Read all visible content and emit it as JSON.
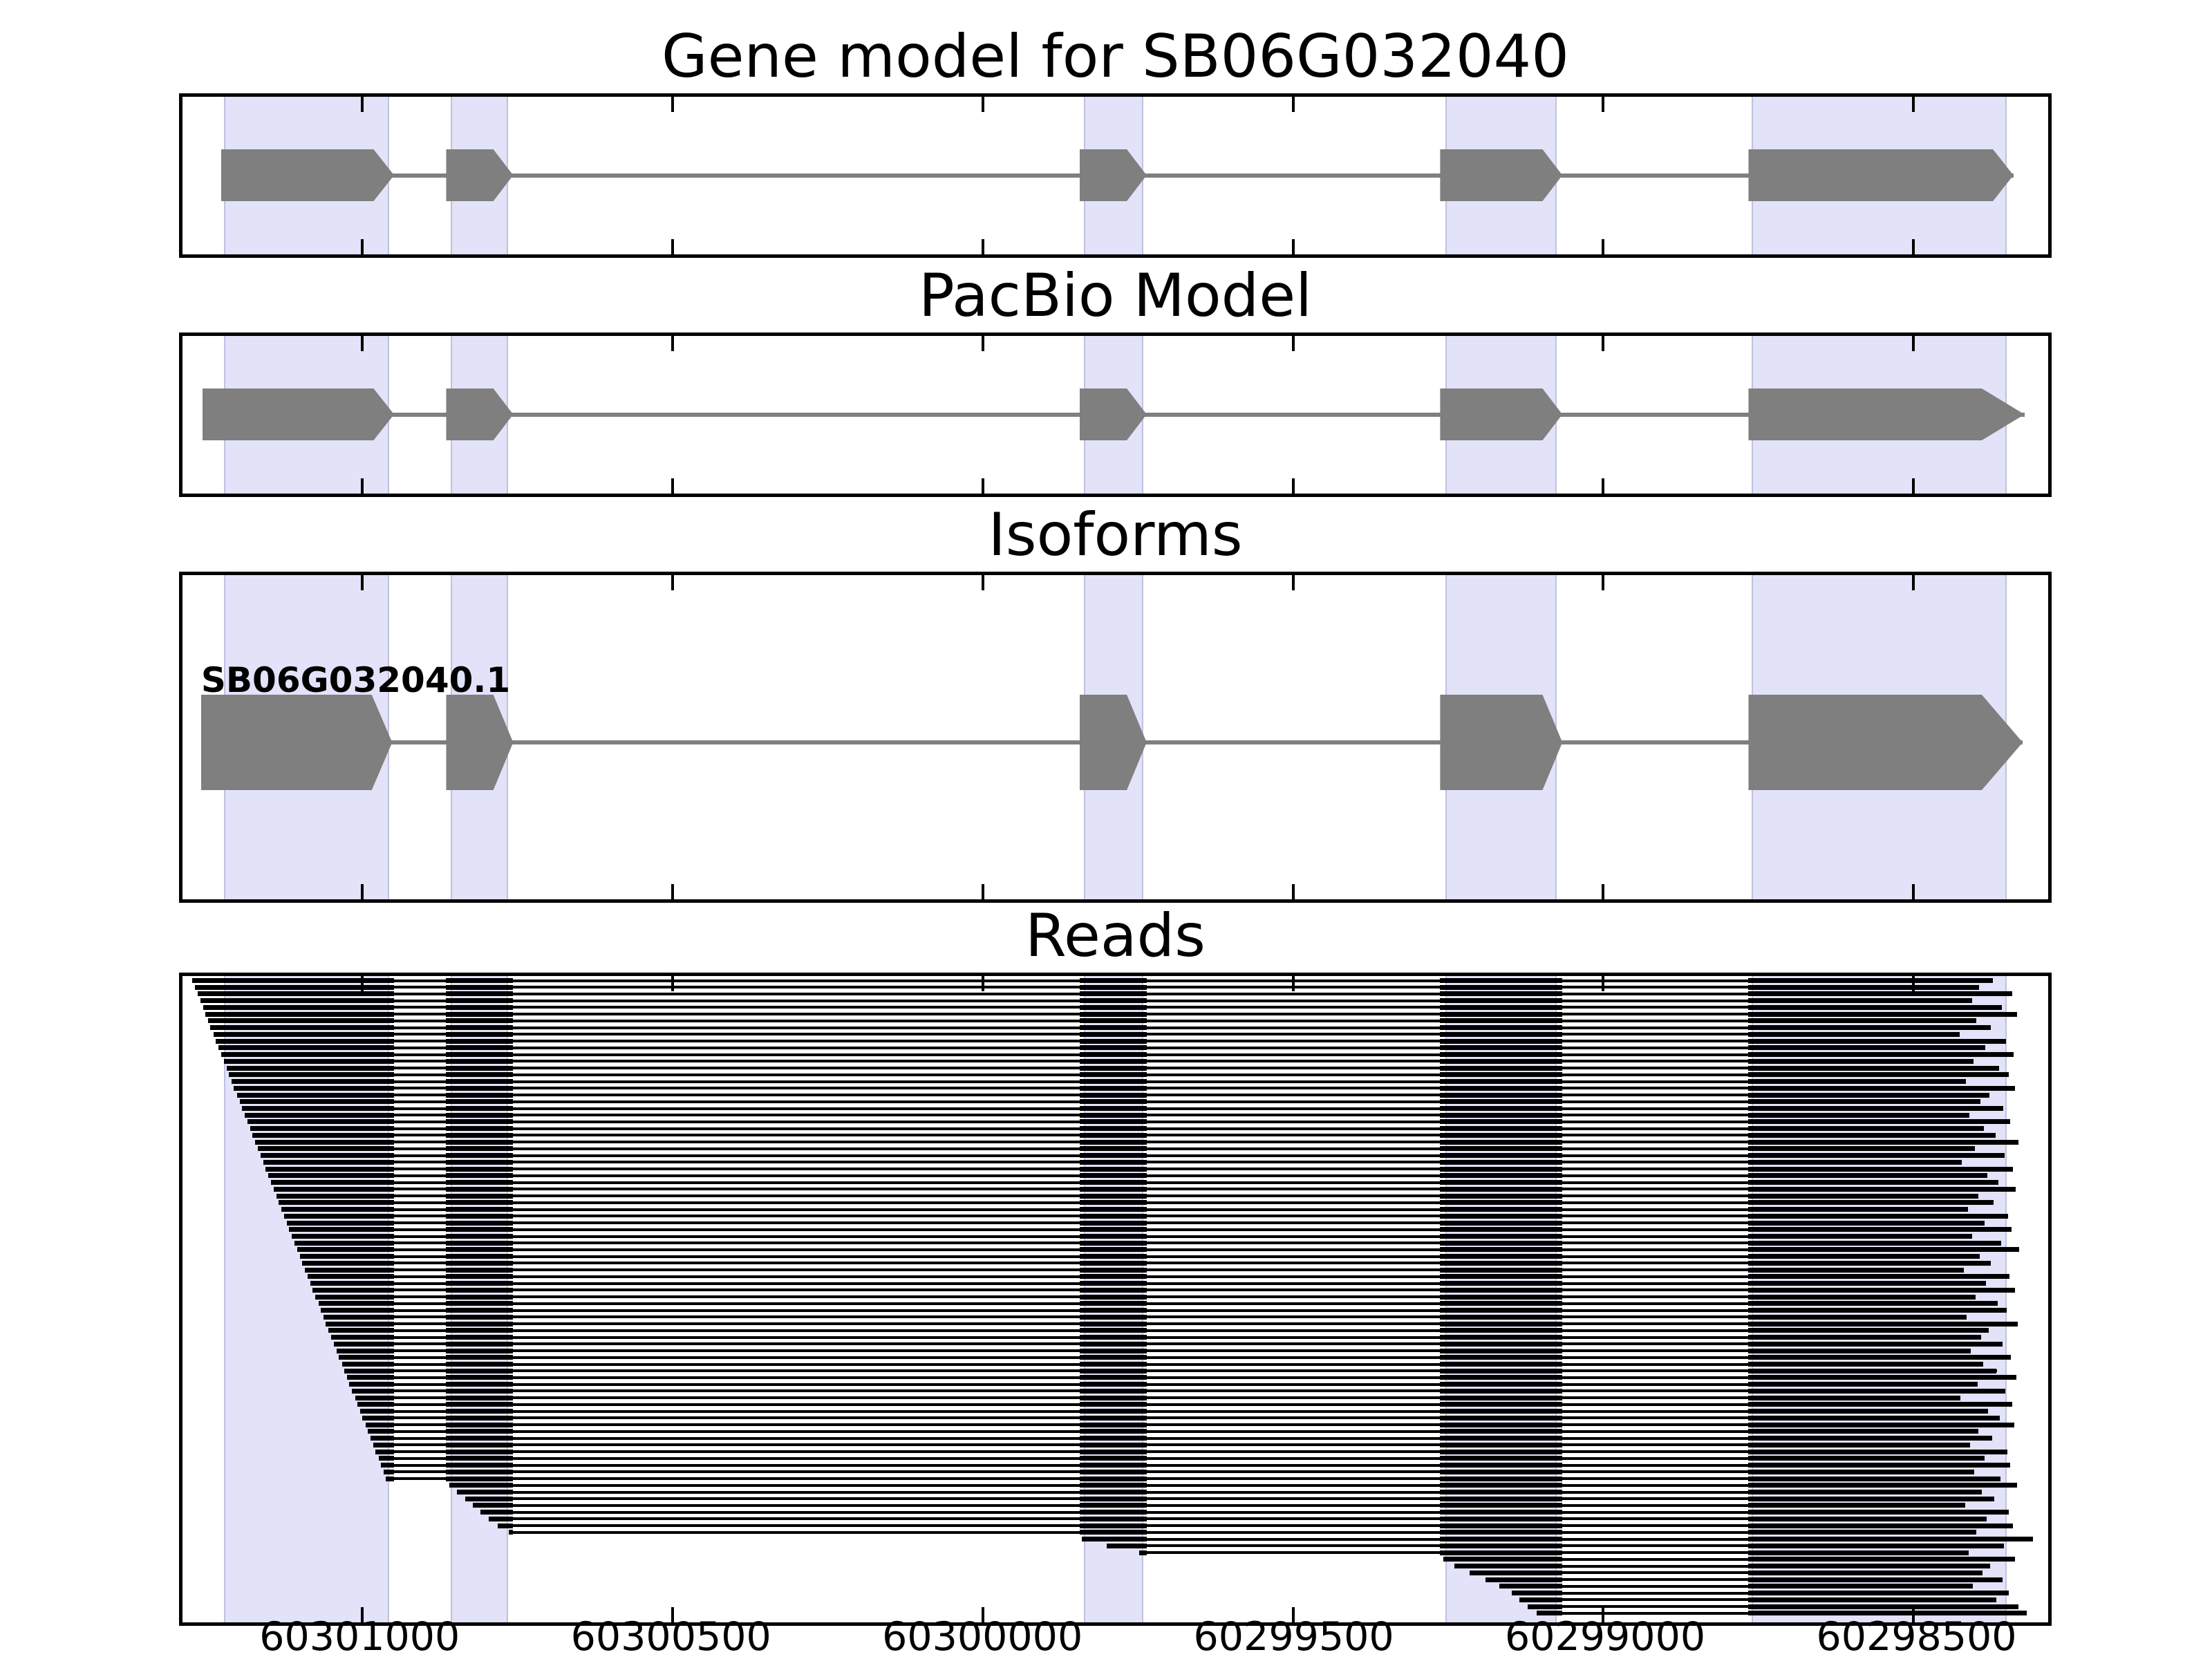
{
  "figure": {
    "background": "#ffffff"
  },
  "chart_data": {
    "type": "gene-model-tracks",
    "x_axis": {
      "reversed": true,
      "xlim_left": 60301290,
      "xlim_right": 60298283,
      "tick_values": [
        60301000,
        60300500,
        60300000,
        60299500,
        60299000,
        60298500
      ],
      "tick_labels": [
        "60301000",
        "60300500",
        "60300000",
        "60299500",
        "60299000",
        "60298500"
      ]
    },
    "colors": {
      "highlight": "#e2e2f8",
      "exon": "#7f7f7f",
      "intron_line": "#7f7f7f",
      "read": "#000000",
      "spine": "#000000"
    },
    "highlight_regions": [
      [
        60301223,
        60300957
      ],
      [
        60300858,
        60300765
      ],
      [
        60299837,
        60299741
      ],
      [
        60299254,
        60299075
      ],
      [
        60298761,
        60298350
      ]
    ],
    "panels": [
      {
        "id": "gene_model",
        "title": "Gene model for SB06G032040",
        "type": "transcript",
        "exons": [
          {
            "s": 60301228,
            "b": 60300982,
            "t": 60300949
          },
          {
            "s": 60300865,
            "b": 60300789,
            "t": 60300757
          },
          {
            "s": 60299844,
            "b": 60299768,
            "t": 60299736
          },
          {
            "s": 60299263,
            "b": 60299098,
            "t": 60299066
          },
          {
            "s": 60298766,
            "b": 60298372,
            "t": 60298339
          }
        ]
      },
      {
        "id": "pacbio_model",
        "title": "PacBio Model",
        "type": "transcript",
        "exons": [
          {
            "s": 60301258,
            "b": 60300982,
            "t": 60300949
          },
          {
            "s": 60300865,
            "b": 60300789,
            "t": 60300757
          },
          {
            "s": 60299844,
            "b": 60299768,
            "t": 60299736
          },
          {
            "s": 60299263,
            "b": 60299098,
            "t": 60299066
          },
          {
            "s": 60298766,
            "b": 60298390,
            "t": 60298321
          }
        ]
      },
      {
        "id": "isoforms",
        "title": "Isoforms",
        "type": "transcript",
        "isoform_label": "SB06G032040.1",
        "exons": [
          {
            "s": 60301260,
            "b": 60300985,
            "t": 60300952
          },
          {
            "s": 60300865,
            "b": 60300789,
            "t": 60300757
          },
          {
            "s": 60299844,
            "b": 60299768,
            "t": 60299736
          },
          {
            "s": 60299263,
            "b": 60299098,
            "t": 60299066
          },
          {
            "s": 60298766,
            "b": 60298390,
            "t": 60298324
          }
        ]
      },
      {
        "id": "reads",
        "title": "Reads",
        "type": "reads",
        "read_exons": [
          [
            60301280,
            60300949
          ],
          [
            60300865,
            60300757
          ],
          [
            60299844,
            60299736
          ],
          [
            60299263,
            60299066
          ],
          [
            60298766,
            60298300
          ]
        ],
        "reads": {
          "starts": [
            60301274,
            60301270,
            60301266,
            60301261,
            60301257,
            60301253,
            60301249,
            60301245,
            60301240,
            60301236,
            60301232,
            60301228,
            60301223,
            60301219,
            60301215,
            60301211,
            60301207,
            60301202,
            60301198,
            60301194,
            60301190,
            60301185,
            60301181,
            60301177,
            60301173,
            60301169,
            60301164,
            60301160,
            60301156,
            60301152,
            60301147,
            60301143,
            60301139,
            60301135,
            60301131,
            60301126,
            60301122,
            60301118,
            60301114,
            60301109,
            60301105,
            60301101,
            60301097,
            60301093,
            60301088,
            60301084,
            60301080,
            60301076,
            60301071,
            60301067,
            60301063,
            60301059,
            60301055,
            60301050,
            60301046,
            60301042,
            60301038,
            60301033,
            60301029,
            60301025,
            60301021,
            60301017,
            60301012,
            60301008,
            60301004,
            60301000,
            60300995,
            60300991,
            60300987,
            60300983,
            60300979,
            60300974,
            60300970,
            60300966,
            60300962,
            60300860,
            60300848,
            60300834,
            60300822,
            60300810,
            60300796,
            60300782,
            60300764,
            60299840,
            60299800,
            60299748,
            60299258,
            60299240,
            60299215,
            60299190,
            60299168,
            60299148,
            60299135,
            60299122,
            60299108
          ],
          "ends": [
            60298372,
            60298394,
            60298341,
            60298406,
            60298358,
            60298333,
            60298399,
            60298375,
            60298426,
            60298351,
            60298384,
            60298339,
            60298403,
            60298362,
            60298347,
            60298416,
            60298336,
            60298378,
            60298392,
            60298355,
            60298410,
            60298344,
            60298387,
            60298368,
            60298331,
            60298401,
            60298353,
            60298422,
            60298340,
            60298381,
            60298363,
            60298335,
            60298396,
            60298371,
            60298412,
            60298348,
            60298386,
            60298342,
            60298405,
            60298359,
            60298330,
            60298393,
            60298376,
            60298419,
            60298345,
            60298383,
            60298337,
            60298400,
            60298364,
            60298350,
            60298414,
            60298332,
            60298379,
            60298391,
            60298357,
            60298408,
            60298343,
            60298388,
            60298366,
            60298334,
            60298397,
            60298352,
            60298424,
            60298341,
            60298380,
            60298361,
            60298338,
            60298395,
            60298373,
            60298409,
            60298349,
            60298385,
            60298344,
            60298402,
            60298360,
            60298333,
            60298390,
            60298370,
            60298417,
            60298347,
            60298382,
            60298340,
            60298399,
            60298308,
            60298354,
            60298411,
            60298336,
            60298377,
            60298389,
            60298356,
            60298404,
            60298346,
            60298367,
            60298331,
            60298318
          ]
        }
      }
    ]
  }
}
